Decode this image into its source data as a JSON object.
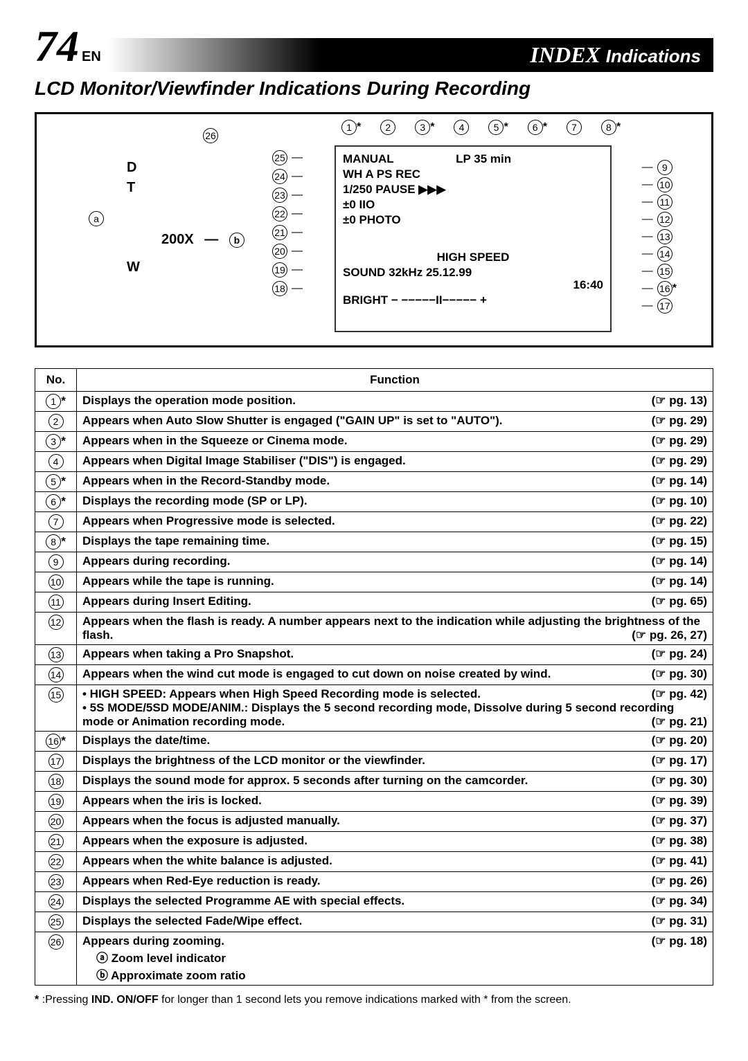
{
  "header": {
    "page_number": "74",
    "lang": "EN",
    "index_label": "INDEX",
    "section": "Indications"
  },
  "subtitle": "LCD Monitor/Viewfinder Indications During Recording",
  "diagram": {
    "left": {
      "d": "D",
      "t": "T",
      "zoom": "200X",
      "w": "W"
    },
    "box": {
      "l1": "MANUAL",
      "l1_right": "LP   35 min",
      "l2": "WH     A                          PS      REC",
      "l3": "1/250           PAUSE             ▶▶▶",
      "l4": "         ±0                                IIO",
      "l5": "±0   PHOTO",
      "l6": "",
      "l7": "HIGH  SPEED",
      "l8": "SOUND  32kHz      25.12.99",
      "l8b": "16:40",
      "l9": "BRIGHT   − −−−−−II−−−−− +"
    },
    "top_callouts": [
      "1",
      "2",
      "3",
      "4",
      "5",
      "6",
      "7",
      "8"
    ],
    "top_stars": [
      true,
      false,
      true,
      false,
      true,
      true,
      false,
      true
    ],
    "left_callouts": [
      "25",
      "24",
      "23",
      "22",
      "21",
      "20",
      "19",
      "18"
    ],
    "right_callouts": [
      "9",
      "10",
      "11",
      "12",
      "13",
      "14",
      "15",
      "16",
      "17"
    ],
    "right_stars": [
      false,
      false,
      false,
      false,
      false,
      false,
      false,
      true,
      false
    ],
    "a_label": "a",
    "b_label": "b",
    "twentysix": "26"
  },
  "table": {
    "headers": {
      "no": "No.",
      "fn": "Function"
    },
    "rows": [
      {
        "n": "1",
        "star": true,
        "fn": "Displays the operation mode position.",
        "pg": "pg. 13"
      },
      {
        "n": "2",
        "star": false,
        "fn": "Appears when Auto Slow Shutter is engaged (\"GAIN UP\" is set to \"AUTO\").",
        "pg": "pg. 29"
      },
      {
        "n": "3",
        "star": true,
        "fn": "Appears when in the Squeeze or Cinema mode.",
        "pg": "pg. 29"
      },
      {
        "n": "4",
        "star": false,
        "fn": "Appears when Digital Image Stabiliser (\"DIS\") is engaged.",
        "pg": "pg. 29"
      },
      {
        "n": "5",
        "star": true,
        "fn": "Appears when in the Record-Standby mode.",
        "pg": "pg. 14"
      },
      {
        "n": "6",
        "star": true,
        "fn": "Displays the recording mode (SP or LP).",
        "pg": "pg. 10"
      },
      {
        "n": "7",
        "star": false,
        "fn": "Appears when Progressive mode is selected.",
        "pg": "pg. 22"
      },
      {
        "n": "8",
        "star": true,
        "fn": "Displays the tape remaining time.",
        "pg": "pg. 15"
      },
      {
        "n": "9",
        "star": false,
        "fn": "Appears during recording.",
        "pg": "pg. 14"
      },
      {
        "n": "10",
        "star": false,
        "fn": "Appears while the tape is running.",
        "pg": "pg. 14"
      },
      {
        "n": "11",
        "star": false,
        "fn": "Appears during Insert Editing.",
        "pg": "pg. 65"
      },
      {
        "n": "12",
        "star": false,
        "fn": "Appears when the flash is ready. A number appears next to the indication while adjusting the brightness of the flash.",
        "pg": "pg. 26, 27"
      },
      {
        "n": "13",
        "star": false,
        "fn": "Appears when taking a Pro Snapshot.",
        "pg": "pg. 24"
      },
      {
        "n": "14",
        "star": false,
        "fn": "Appears when the wind cut mode is engaged to cut down on noise created by wind.",
        "pg": "pg. 30"
      },
      {
        "n": "15",
        "star": false,
        "fn": "• HIGH SPEED: Appears when High Speed Recording mode is selected.\n• 5S MODE/5SD MODE/ANIM.: Displays the 5 second recording mode, Dissolve during 5 second recording mode or Animation recording mode.",
        "pg": "pg. 42|pg. 21"
      },
      {
        "n": "16",
        "star": true,
        "fn": "Displays the date/time.",
        "pg": "pg. 20"
      },
      {
        "n": "17",
        "star": false,
        "fn": "Displays the brightness of the LCD monitor or the viewfinder.",
        "pg": "pg. 17"
      },
      {
        "n": "18",
        "star": false,
        "fn": "Displays the sound mode for approx. 5 seconds after turning on the camcorder.",
        "pg": "pg. 30"
      },
      {
        "n": "19",
        "star": false,
        "fn": "Appears when the iris is locked.",
        "pg": "pg. 39"
      },
      {
        "n": "20",
        "star": false,
        "fn": "Appears when the focus is adjusted manually.",
        "pg": "pg. 37"
      },
      {
        "n": "21",
        "star": false,
        "fn": "Appears when the exposure is adjusted.",
        "pg": "pg. 38"
      },
      {
        "n": "22",
        "star": false,
        "fn": "Appears when the white balance is adjusted.",
        "pg": "pg. 41"
      },
      {
        "n": "23",
        "star": false,
        "fn": "Appears when Red-Eye reduction is ready.",
        "pg": "pg. 26"
      },
      {
        "n": "24",
        "star": false,
        "fn": "Displays the selected Programme AE with special effects.",
        "pg": "pg. 34"
      },
      {
        "n": "25",
        "star": false,
        "fn": "Displays the selected Fade/Wipe effect.",
        "pg": "pg. 31"
      },
      {
        "n": "26",
        "star": false,
        "fn": "Appears during zooming.\nⓐ Zoom level indicator\nⓑ Approximate zoom ratio",
        "pg": "pg. 18"
      }
    ]
  },
  "footnote": {
    "star": "*",
    "text": ":Pressing ",
    "bold": "IND. ON/OFF",
    "rest": " for longer than 1 second lets you remove indications marked with * from the screen."
  }
}
